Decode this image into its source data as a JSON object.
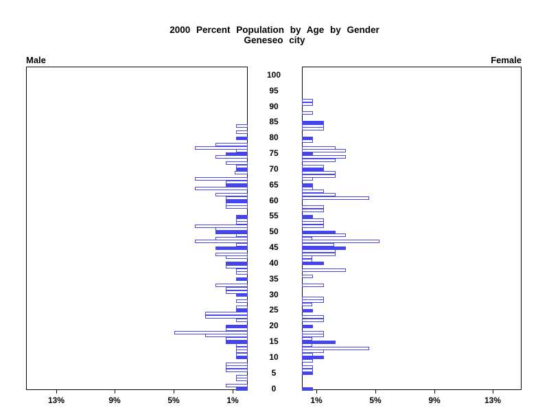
{
  "title": {
    "line1": "2000 Percent Population by Age by Gender",
    "line2": "Geneseo city"
  },
  "panels": {
    "male_label": "Male",
    "female_label": "Female"
  },
  "axis": {
    "age_tick_labels": [
      0,
      5,
      10,
      15,
      20,
      25,
      30,
      35,
      40,
      45,
      50,
      55,
      60,
      65,
      70,
      75,
      80,
      85,
      90,
      95,
      100
    ],
    "percent_tick_values": [
      1,
      5,
      9,
      13
    ],
    "male_percent_tick_labels": [
      "1%",
      "5%",
      "9%",
      "13%"
    ],
    "female_percent_tick_labels": [
      "1%",
      "5%",
      "9%",
      "13%"
    ]
  },
  "colors": {
    "bar_blue": "#4444ee",
    "axis_black": "#000000",
    "background": "#ffffff"
  },
  "chart_data": {
    "type": "bar",
    "orientation": "horizontal-pyramid",
    "title": "2000 Percent Population by Age by Gender",
    "subtitle": "Geneseo city",
    "unit": "percent of population",
    "x_axis_range_percent": [
      0,
      15
    ],
    "x_ticks_percent": [
      1,
      5,
      9,
      13
    ],
    "age_range": [
      0,
      100
    ],
    "solid_fill_rule": "ages divisible by 5 are filled solid blue; other ages outlined",
    "ages": [
      0,
      1,
      2,
      3,
      4,
      5,
      6,
      7,
      8,
      9,
      10,
      11,
      12,
      13,
      14,
      15,
      16,
      17,
      18,
      19,
      20,
      21,
      22,
      23,
      24,
      25,
      26,
      27,
      28,
      29,
      30,
      31,
      32,
      33,
      34,
      35,
      36,
      37,
      38,
      39,
      40,
      41,
      42,
      43,
      44,
      45,
      46,
      47,
      48,
      49,
      50,
      51,
      52,
      53,
      54,
      55,
      56,
      57,
      58,
      59,
      60,
      61,
      62,
      63,
      64,
      65,
      66,
      67,
      68,
      69,
      70,
      71,
      72,
      73,
      74,
      75,
      76,
      77,
      78,
      79,
      80,
      81,
      82,
      83,
      84,
      85,
      86,
      87,
      88,
      89,
      90,
      91,
      92,
      93,
      94,
      95,
      96,
      97,
      98,
      99,
      100
    ],
    "series": [
      {
        "name": "Male",
        "values": [
          0.8,
          1.5,
          0,
          0.8,
          0.8,
          0,
          1.5,
          1.5,
          1.5,
          0,
          0.8,
          0.8,
          0.8,
          0.8,
          0.8,
          1.5,
          1.5,
          2.9,
          5.0,
          1.5,
          1.5,
          0,
          0.8,
          2.9,
          2.9,
          0.8,
          0.8,
          0,
          0.8,
          0,
          0.8,
          1.5,
          1.5,
          2.2,
          0,
          0.8,
          0,
          0.8,
          0.8,
          1.5,
          1.5,
          0,
          1.5,
          2.2,
          0,
          2.2,
          0.8,
          3.6,
          2.2,
          0.8,
          2.2,
          2.2,
          3.6,
          0.8,
          0.8,
          0.8,
          0,
          0,
          1.5,
          1.5,
          1.5,
          1.5,
          2.2,
          0,
          3.6,
          1.5,
          1.5,
          3.6,
          0,
          0.9,
          0.8,
          0.8,
          1.5,
          0,
          2.2,
          1.5,
          0.8,
          3.6,
          2.2,
          0,
          0.8,
          0,
          0.8,
          0,
          0.8,
          0,
          0,
          0,
          0,
          0,
          0,
          0,
          0,
          0,
          0,
          0,
          0,
          0,
          0,
          0,
          0
        ]
      },
      {
        "name": "Female",
        "values": [
          0.75,
          0,
          0,
          0,
          0,
          0.75,
          0.75,
          0.75,
          0,
          0.75,
          1.5,
          0.75,
          1.5,
          4.6,
          0.7,
          2.3,
          0.7,
          1.5,
          1.5,
          0,
          0.75,
          0,
          1.5,
          1.5,
          0,
          0.75,
          0,
          0.7,
          1.5,
          1.5,
          0,
          0,
          0,
          1.5,
          0,
          0,
          0.75,
          0,
          3.0,
          0,
          1.5,
          0.7,
          0.7,
          2.3,
          2.3,
          3.0,
          2.2,
          5.3,
          0.7,
          3.0,
          2.3,
          0,
          1.5,
          1.5,
          1.5,
          0.75,
          0,
          1.5,
          1.5,
          0,
          0,
          4.6,
          2.3,
          1.5,
          0.75,
          0.75,
          0,
          0.75,
          2.3,
          2.3,
          1.5,
          1.5,
          0,
          2.3,
          3.0,
          0.75,
          3.0,
          2.3,
          0,
          0.75,
          0.75,
          0,
          0,
          1.5,
          1.5,
          1.5,
          0,
          0,
          0.75,
          0,
          0,
          0.75,
          0.75,
          0,
          0,
          0,
          0,
          0,
          0,
          0,
          0
        ]
      }
    ]
  }
}
